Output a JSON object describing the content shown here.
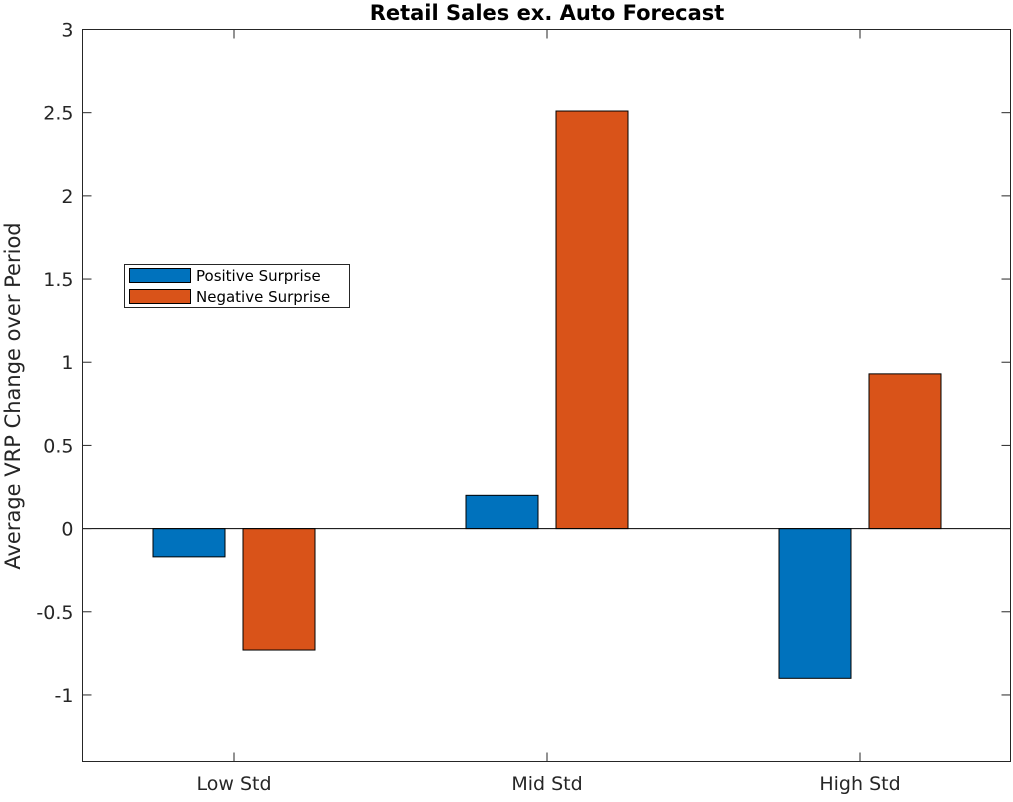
{
  "chart_data": {
    "type": "bar",
    "title": "Retail Sales ex. Auto Forecast",
    "xlabel": "",
    "ylabel": "Average VRP Change over Period",
    "categories": [
      "Low Std",
      "Mid Std",
      "High Std"
    ],
    "series": [
      {
        "name": "Positive Surprise",
        "color": "#0072BD",
        "values": [
          -0.17,
          0.2,
          -0.9
        ]
      },
      {
        "name": "Negative Surprise",
        "color": "#D95319",
        "values": [
          -0.73,
          2.51,
          0.93
        ]
      }
    ],
    "ylim": [
      -1.4,
      3
    ],
    "yticks": [
      -1,
      -0.5,
      0,
      0.5,
      1,
      1.5,
      2,
      2.5,
      3
    ],
    "ytick_labels": [
      "-1",
      "-0.5",
      "0",
      "0.5",
      "1",
      "1.5",
      "2",
      "2.5",
      "3"
    ],
    "grid": false,
    "legend_position": "left"
  }
}
